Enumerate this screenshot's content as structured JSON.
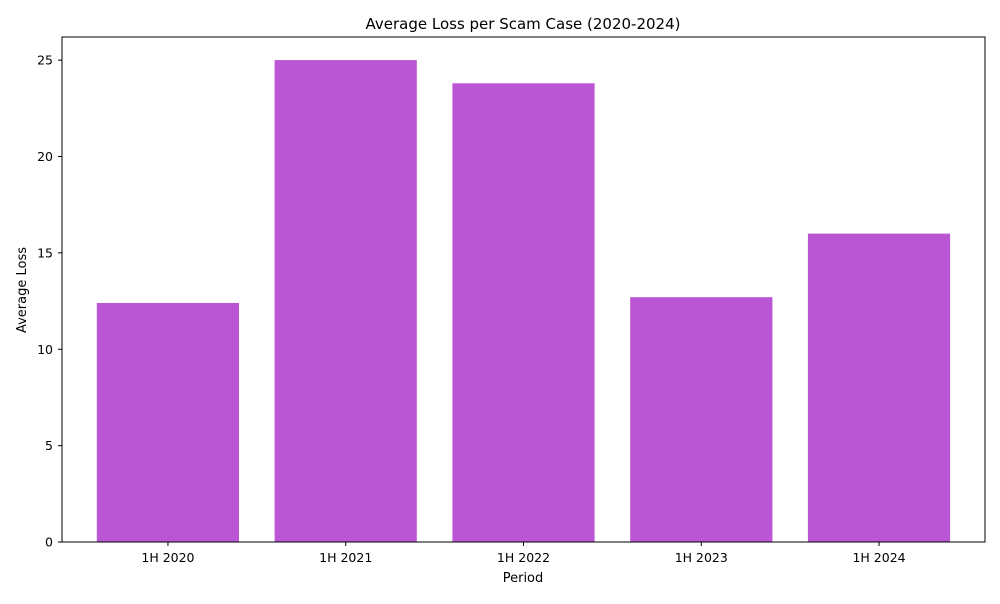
{
  "chart_data": {
    "type": "bar",
    "title": "Average Loss per Scam Case (2020-2024)",
    "xlabel": "Period",
    "ylabel": "Average Loss",
    "categories": [
      "1H 2020",
      "1H 2021",
      "1H 2022",
      "1H 2023",
      "1H 2024"
    ],
    "values": [
      12.4,
      25.0,
      23.8,
      12.7,
      16.0
    ],
    "ylim": [
      0,
      26.2
    ],
    "yticks": [
      0,
      5,
      10,
      15,
      20,
      25
    ],
    "grid": false,
    "legend": "none",
    "colors": {
      "bar": "#ba55d3",
      "axis": "#000000"
    }
  }
}
